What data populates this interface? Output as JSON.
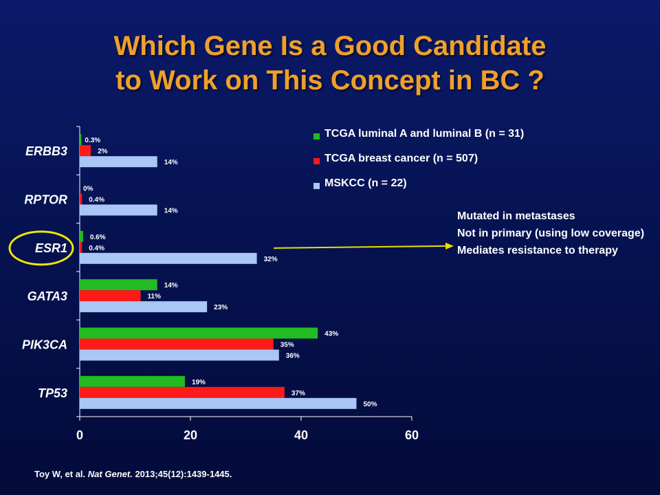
{
  "title": {
    "line1": "Which Gene Is a Good Candidate",
    "line2": "to Work on This Concept in BC ?"
  },
  "chart_data": {
    "type": "bar",
    "orientation": "horizontal",
    "categories": [
      "ERBB3",
      "RPTOR",
      "ESR1",
      "GATA3",
      "PIK3CA",
      "TP53"
    ],
    "series": [
      {
        "name": "TCGA luminal A and luminal B (n = 31)",
        "color": "#22bb22",
        "values": [
          0.3,
          0,
          0.6,
          14,
          43,
          19
        ],
        "labels": [
          "0.3%",
          "0%",
          "0.6%",
          "14%",
          "43%",
          "19%"
        ]
      },
      {
        "name": "TCGA breast cancer (n = 507)",
        "color": "#ff1a1a",
        "values": [
          2,
          0.4,
          0.4,
          11,
          35,
          37
        ],
        "labels": [
          "2%",
          "0.4%",
          "0.4%",
          "11%",
          "35%",
          "37%"
        ]
      },
      {
        "name": "MSKCC (n = 22)",
        "color": "#a9c6f5",
        "values": [
          14,
          14,
          32,
          23,
          36,
          50
        ],
        "labels": [
          "14%",
          "14%",
          "32%",
          "23%",
          "36%",
          "50%"
        ]
      }
    ],
    "x_ticks": [
      "0",
      "20",
      "40",
      "60"
    ],
    "xlim": [
      0,
      60
    ],
    "highlighted_category": "ESR1",
    "legend_position": "top-right"
  },
  "notes": [
    "Mutated in metastases",
    "Not in primary (using low coverage)",
    "Mediates resistance to therapy"
  ],
  "citation": {
    "authors": "Toy W, et al.",
    "journal": "Nat Genet.",
    "details": "2013;45(12):1439-1445."
  },
  "colors": {
    "title": "#f0a02a",
    "highlight_ring": "#f2e600",
    "arrow": "#e8e000"
  }
}
